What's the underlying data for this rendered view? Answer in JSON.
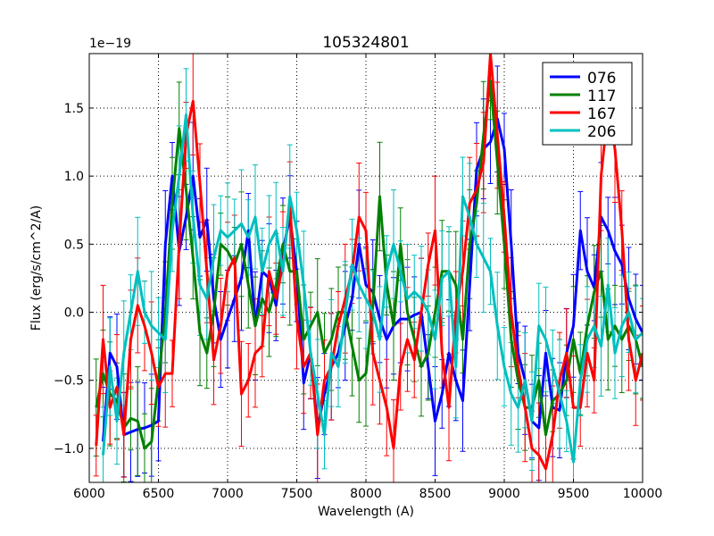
{
  "chart_data": {
    "type": "line",
    "title": "105324801",
    "xlabel": "Wavelength (A)",
    "ylabel": "Flux (erg/s/cm^2/A)",
    "offset_text": "1e−19",
    "xlim": [
      6000,
      10000
    ],
    "ylim": [
      -1.25,
      1.9
    ],
    "x_ticks": [
      6000,
      6500,
      7000,
      7500,
      8000,
      8500,
      9000,
      9500,
      10000
    ],
    "x_tick_labels": [
      "6000",
      "6500",
      "7000",
      "7500",
      "8000",
      "8500",
      "9000",
      "9500",
      "10000"
    ],
    "y_ticks": [
      -1.0,
      -0.5,
      0.0,
      0.5,
      1.0,
      1.5
    ],
    "y_tick_labels": [
      "−1.0",
      "−0.5",
      "0.0",
      "0.5",
      "1.0",
      "1.5"
    ],
    "grid": true,
    "legend_position": "top-right",
    "series": [
      {
        "name": "076",
        "color": "#0000ff",
        "x": [
          6100,
          6150,
          6200,
          6250,
          6300,
          6350,
          6400,
          6450,
          6500,
          6550,
          6600,
          6650,
          6700,
          6750,
          6800,
          6850,
          6900,
          6950,
          7000,
          7050,
          7100,
          7150,
          7200,
          7250,
          7300,
          7350,
          7400,
          7450,
          7500,
          7550,
          7600,
          7650,
          7700,
          7750,
          7800,
          7850,
          7900,
          7950,
          8000,
          8050,
          8100,
          8150,
          8200,
          8250,
          8300,
          8350,
          8400,
          8450,
          8500,
          8550,
          8600,
          8650,
          8700,
          8750,
          8800,
          8850,
          8900,
          8950,
          9000,
          9050,
          9100,
          9150,
          9200,
          9250,
          9300,
          9350,
          9400,
          9450,
          9500,
          9550,
          9600,
          9650,
          9700,
          9750,
          9800,
          9850,
          9900,
          9950,
          10000
        ],
        "y": [
          -0.95,
          -0.3,
          -0.4,
          -0.9,
          -0.88,
          -0.86,
          -0.85,
          -0.83,
          -0.8,
          0.5,
          1.0,
          0.45,
          0.7,
          1.0,
          0.55,
          0.68,
          0.1,
          -0.2,
          -0.05,
          0.1,
          0.25,
          0.6,
          -0.1,
          0.3,
          0.25,
          0.05,
          0.45,
          0.7,
          0.3,
          -0.52,
          -0.3,
          -0.85,
          -0.6,
          -0.4,
          -0.3,
          -0.1,
          0.1,
          0.5,
          0.2,
          0.15,
          -0.05,
          -0.2,
          -0.1,
          -0.05,
          -0.05,
          -0.02,
          0.0,
          -0.4,
          -0.8,
          -0.6,
          -0.3,
          -0.5,
          -0.65,
          0.2,
          1.05,
          1.2,
          1.25,
          1.42,
          1.2,
          0.5,
          -0.3,
          -0.5,
          -0.8,
          -0.85,
          -0.3,
          -0.7,
          -0.72,
          -0.3,
          -0.1,
          0.6,
          0.3,
          0.18,
          0.7,
          0.6,
          0.45,
          0.35,
          0.1,
          -0.05,
          -0.15
        ]
      },
      {
        "name": "117",
        "color": "#008000",
        "x": [
          6050,
          6100,
          6150,
          6200,
          6250,
          6300,
          6350,
          6400,
          6450,
          6500,
          6550,
          6600,
          6650,
          6700,
          6750,
          6800,
          6850,
          6900,
          6950,
          7000,
          7050,
          7100,
          7150,
          7200,
          7250,
          7300,
          7350,
          7400,
          7450,
          7500,
          7550,
          7600,
          7650,
          7700,
          7750,
          7800,
          7850,
          7900,
          7950,
          8000,
          8050,
          8100,
          8150,
          8200,
          8250,
          8300,
          8350,
          8400,
          8450,
          8500,
          8550,
          8600,
          8650,
          8700,
          8750,
          8800,
          8850,
          8900,
          8950,
          9000,
          9050,
          9100,
          9150,
          9200,
          9250,
          9300,
          9350,
          9400,
          9450,
          9500,
          9550,
          9600,
          9650,
          9700,
          9750,
          9800,
          9850,
          9900,
          9950,
          10000
        ],
        "y": [
          -0.7,
          -0.45,
          -0.6,
          -0.65,
          -0.85,
          -0.78,
          -0.8,
          -1.0,
          -0.95,
          -0.5,
          0.0,
          0.8,
          1.35,
          0.9,
          0.4,
          -0.15,
          -0.3,
          0.0,
          0.5,
          0.45,
          0.35,
          0.5,
          0.2,
          -0.1,
          0.1,
          0.0,
          0.2,
          0.5,
          0.3,
          0.3,
          -0.2,
          -0.1,
          0.0,
          -0.3,
          -0.2,
          0.0,
          0.0,
          -0.25,
          -0.5,
          -0.45,
          0.05,
          0.85,
          0.2,
          -0.1,
          0.5,
          0.0,
          -0.2,
          -0.4,
          -0.3,
          0.0,
          0.3,
          0.3,
          0.2,
          -0.2,
          0.5,
          0.8,
          1.3,
          1.7,
          1.1,
          0.5,
          -0.2,
          -0.5,
          -0.7,
          -0.7,
          -0.5,
          -0.9,
          -0.65,
          -0.6,
          -0.5,
          -0.2,
          -0.45,
          -0.1,
          0.15,
          0.3,
          -0.2,
          -0.1,
          -0.2,
          -0.1,
          -0.2,
          -0.4
        ]
      },
      {
        "name": "167",
        "color": "#ff0000",
        "x": [
          6050,
          6100,
          6150,
          6200,
          6250,
          6300,
          6350,
          6400,
          6450,
          6500,
          6550,
          6600,
          6650,
          6700,
          6750,
          6800,
          6850,
          6900,
          6950,
          7000,
          7050,
          7100,
          7150,
          7200,
          7250,
          7300,
          7350,
          7400,
          7450,
          7500,
          7550,
          7600,
          7650,
          7700,
          7750,
          7800,
          7850,
          7900,
          7950,
          8000,
          8050,
          8100,
          8150,
          8200,
          8250,
          8300,
          8350,
          8400,
          8450,
          8500,
          8550,
          8600,
          8650,
          8700,
          8750,
          8800,
          8850,
          8900,
          8950,
          9000,
          9050,
          9100,
          9150,
          9200,
          9250,
          9300,
          9350,
          9400,
          9450,
          9500,
          9550,
          9600,
          9650,
          9700,
          9750,
          9800,
          9850,
          9900,
          9950,
          10000
        ],
        "y": [
          -0.98,
          -0.2,
          -0.7,
          -0.55,
          -0.9,
          -0.2,
          0.05,
          -0.1,
          -0.3,
          -0.55,
          -0.45,
          -0.45,
          0.5,
          1.3,
          1.55,
          0.95,
          0.3,
          -0.35,
          -0.1,
          0.3,
          0.4,
          -0.6,
          -0.5,
          -0.3,
          -0.25,
          0.3,
          0.1,
          0.35,
          0.8,
          -0.05,
          -0.4,
          -0.3,
          -0.9,
          -0.5,
          -0.4,
          -0.1,
          0.1,
          0.3,
          0.7,
          0.6,
          -0.3,
          -0.5,
          -0.7,
          -1.0,
          -0.4,
          -0.2,
          -0.35,
          0.0,
          0.35,
          0.6,
          -0.3,
          -0.7,
          0.0,
          0.3,
          0.8,
          0.9,
          1.1,
          1.9,
          1.3,
          0.7,
          0.0,
          -0.4,
          -0.7,
          -1.0,
          -1.05,
          -1.15,
          -0.9,
          -0.5,
          -0.3,
          -0.7,
          -0.7,
          -0.3,
          -0.5,
          1.0,
          1.5,
          1.2,
          0.6,
          -0.2,
          -0.5,
          -0.3
        ]
      },
      {
        "name": "206",
        "color": "#00bfbf",
        "x": [
          6100,
          6150,
          6200,
          6250,
          6300,
          6350,
          6400,
          6450,
          6500,
          6550,
          6600,
          6650,
          6700,
          6750,
          6800,
          6850,
          6900,
          6950,
          7000,
          7050,
          7100,
          7150,
          7200,
          7250,
          7300,
          7350,
          7400,
          7450,
          7500,
          7550,
          7600,
          7650,
          7700,
          7750,
          7800,
          7850,
          7900,
          7950,
          8000,
          8050,
          8100,
          8150,
          8200,
          8250,
          8300,
          8350,
          8400,
          8450,
          8500,
          8550,
          8600,
          8650,
          8700,
          8750,
          8800,
          8850,
          8900,
          8950,
          9000,
          9050,
          9100,
          9150,
          9200,
          9250,
          9300,
          9350,
          9400,
          9450,
          9500,
          9550,
          9600,
          9650,
          9700,
          9750,
          9800,
          9850,
          9900,
          9950,
          10000
        ],
        "y": [
          -1.05,
          -0.4,
          -0.8,
          -0.3,
          0.0,
          0.3,
          0.0,
          -0.1,
          -0.15,
          -0.2,
          0.6,
          1.0,
          1.45,
          0.7,
          0.2,
          0.1,
          0.4,
          0.6,
          0.55,
          0.6,
          0.65,
          0.55,
          0.7,
          0.3,
          0.5,
          0.6,
          0.3,
          0.85,
          0.6,
          0.2,
          -0.3,
          -0.6,
          -0.9,
          -0.3,
          -0.4,
          0.0,
          0.35,
          0.2,
          0.1,
          0.0,
          -0.2,
          0.3,
          0.5,
          0.3,
          0.1,
          0.15,
          0.1,
          0.0,
          -0.2,
          0.25,
          0.3,
          -0.4,
          0.85,
          0.7,
          0.5,
          0.4,
          0.3,
          -0.1,
          -0.4,
          -0.6,
          -0.7,
          -0.5,
          -0.8,
          -0.1,
          -0.2,
          -0.4,
          -0.6,
          -0.8,
          -1.1,
          -0.5,
          -0.2,
          -0.1,
          -0.25,
          0.2,
          -0.3,
          -0.1,
          0.0,
          -0.2,
          -0.15
        ]
      }
    ]
  }
}
